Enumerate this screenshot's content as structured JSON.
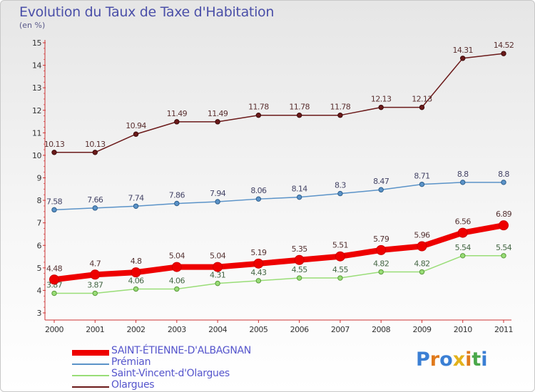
{
  "chart_data": {
    "type": "line",
    "title": "Evolution du Taux de Taxe d'Habitation",
    "subtitle": "(en %)",
    "categories": [
      "2000",
      "2001",
      "2002",
      "2003",
      "2004",
      "2005",
      "2006",
      "2007",
      "2008",
      "2009",
      "2010",
      "2011"
    ],
    "ylim": [
      3,
      15
    ],
    "yticks": [
      "3",
      "4",
      "5",
      "6",
      "7",
      "8",
      "9",
      "10",
      "11",
      "12",
      "13",
      "14",
      "15"
    ],
    "grid": false,
    "series": [
      {
        "name": "Olargues",
        "color": "#6b1a1a",
        "values": [
          10.13,
          10.13,
          10.94,
          11.49,
          11.49,
          11.78,
          11.78,
          11.78,
          12.13,
          12.13,
          14.31,
          14.52
        ],
        "labels": [
          "10.13",
          "10.13",
          "10.94",
          "11.49",
          "11.49",
          "11.78",
          "11.78",
          "11.78",
          "12.13",
          "12.13",
          "14.31",
          "14.52"
        ]
      },
      {
        "name": "Prémian",
        "color": "#5b93c8",
        "values": [
          7.58,
          7.66,
          7.74,
          7.86,
          7.94,
          8.06,
          8.14,
          8.3,
          8.47,
          8.71,
          8.8,
          8.8
        ],
        "labels": [
          "7.58",
          "7.66",
          "7.74",
          "7.86",
          "7.94",
          "8.06",
          "8.14",
          "8.3",
          "8.47",
          "8.71",
          "8.8",
          "8.8"
        ]
      },
      {
        "name": "Saint-Vincent-d'Olargues",
        "color": "#99dd77",
        "values": [
          3.87,
          3.87,
          4.06,
          4.06,
          4.31,
          4.43,
          4.55,
          4.55,
          4.82,
          4.82,
          5.54,
          5.54
        ],
        "labels": [
          "3.87",
          "3.87",
          "4.06",
          "4.06",
          "4.31",
          "4.43",
          "4.55",
          "4.55",
          "4.82",
          "4.82",
          "5.54",
          "5.54"
        ]
      },
      {
        "name": "SAINT-ÉTIENNE-D'ALBAGNAN",
        "color": "#ee0000",
        "values": [
          4.48,
          4.7,
          4.8,
          5.04,
          5.04,
          5.19,
          5.35,
          5.51,
          5.79,
          5.96,
          6.56,
          6.89
        ],
        "labels": [
          "4.48",
          "4.7",
          "4.8",
          "5.04",
          "5.04",
          "5.19",
          "5.35",
          "5.51",
          "5.79",
          "5.96",
          "6.56",
          "6.89"
        ]
      }
    ],
    "legend": [
      {
        "name": "SAINT-ÉTIENNE-D'ALBAGNAN",
        "color": "#ee0000",
        "text_color": "#5555cc"
      },
      {
        "name": "Prémian",
        "color": "#5b93c8",
        "text_color": "#5555cc"
      },
      {
        "name": "Saint-Vincent-d'Olargues",
        "color": "#99dd77",
        "text_color": "#5555cc"
      },
      {
        "name": "Olargues",
        "color": "#6b1a1a",
        "text_color": "#5555cc"
      }
    ],
    "legend_position": "bottom-left"
  },
  "logo": {
    "text": "Proxiti"
  }
}
